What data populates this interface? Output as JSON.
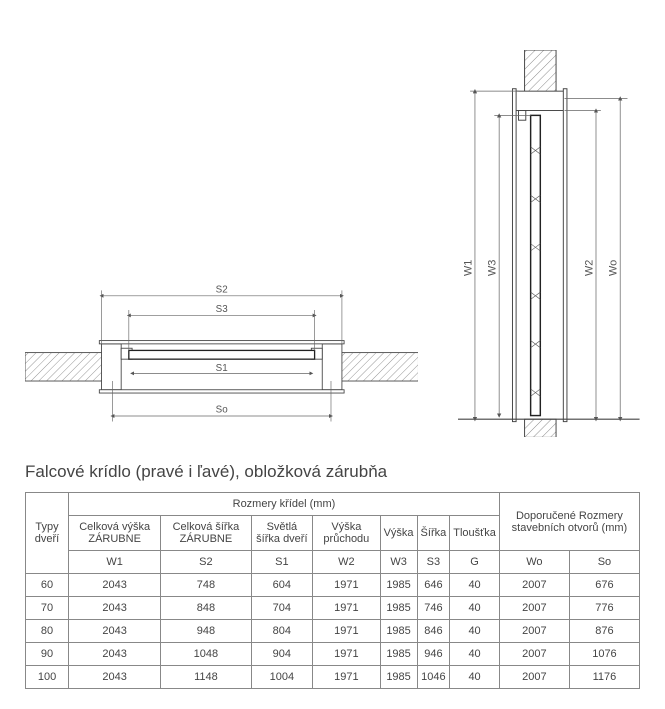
{
  "title": "Falcové krídlo (pravé i ľavé), obložková zárubňa",
  "diagram": {
    "top_labels": {
      "S2": "S2",
      "S3": "S3",
      "S1": "S1",
      "So": "So"
    },
    "side_labels": {
      "W1": "W1",
      "W3": "W3",
      "W2": "W2",
      "Wo": "Wo"
    },
    "line_color": "#555555",
    "hatch_color": "#888888",
    "frame_color": "#444444",
    "door_color": "#222222",
    "bg": "#ffffff"
  },
  "table": {
    "head_group1": "Rozmery křídel (mm)",
    "head_group2": "Doporučené Rozmery stavebních otvorů (mm)",
    "col_types": "Typy dveří",
    "cols": [
      {
        "label": "Celková výška ZÁRUBNE",
        "sym": "W1"
      },
      {
        "label": "Celková šířka ZÁRUBNE",
        "sym": "S2"
      },
      {
        "label": "Světlá šířka dveří",
        "sym": "S1"
      },
      {
        "label": "Výška průchodu",
        "sym": "W2"
      },
      {
        "label": "Výška",
        "sym": "W3"
      },
      {
        "label": "Šířka",
        "sym": "S3"
      },
      {
        "label": "Tloušťka",
        "sym": "G"
      }
    ],
    "cols_op": [
      {
        "sym": "Wo"
      },
      {
        "sym": "So"
      }
    ],
    "rows": [
      {
        "type": "60",
        "v": [
          "2043",
          "748",
          "604",
          "1971",
          "1985",
          "646",
          "40",
          "2007",
          "676"
        ]
      },
      {
        "type": "70",
        "v": [
          "2043",
          "848",
          "704",
          "1971",
          "1985",
          "746",
          "40",
          "2007",
          "776"
        ]
      },
      {
        "type": "80",
        "v": [
          "2043",
          "948",
          "804",
          "1971",
          "1985",
          "846",
          "40",
          "2007",
          "876"
        ]
      },
      {
        "type": "90",
        "v": [
          "2043",
          "1048",
          "904",
          "1971",
          "1985",
          "946",
          "40",
          "2007",
          "1076"
        ]
      },
      {
        "type": "100",
        "v": [
          "2043",
          "1148",
          "1004",
          "1971",
          "1985",
          "1046",
          "40",
          "2007",
          "1176"
        ]
      }
    ]
  }
}
